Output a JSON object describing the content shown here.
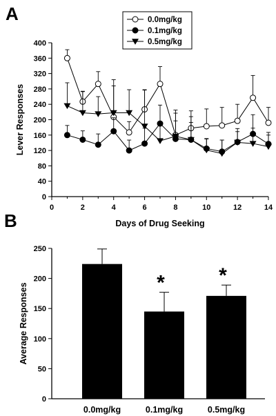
{
  "panel_labels": {
    "a": "A",
    "b": "B"
  },
  "chart_data": [
    {
      "type": "line",
      "panel": "A",
      "xlabel": "Days of Drug Seeking",
      "ylabel": "Lever Responses",
      "xlim": [
        0,
        14
      ],
      "ylim": [
        0,
        400
      ],
      "x_ticks": [
        "0",
        "2",
        "4",
        "6",
        "8",
        "10",
        "12",
        "14"
      ],
      "y_ticks": [
        "0",
        "40",
        "80",
        "120",
        "160",
        "200",
        "240",
        "280",
        "320",
        "360",
        "400"
      ],
      "legend_position": "top-center",
      "series": [
        {
          "name": "0.0mg/kg",
          "marker": "open-circle",
          "color": "#000000",
          "x": [
            1,
            2,
            3,
            4,
            5,
            6,
            7,
            8,
            9,
            10,
            11,
            12,
            13,
            14
          ],
          "y": [
            360,
            247,
            293,
            207,
            167,
            227,
            293,
            160,
            178,
            183,
            185,
            197,
            257,
            192
          ],
          "error": [
            22,
            27,
            32,
            97,
            28,
            50,
            45,
            65,
            45,
            45,
            47,
            43,
            58,
            40
          ]
        },
        {
          "name": "0.1mg/kg",
          "marker": "filled-circle",
          "color": "#000000",
          "x": [
            1,
            2,
            3,
            4,
            5,
            6,
            7,
            8,
            9,
            10,
            11,
            12,
            13,
            14
          ],
          "y": [
            160,
            148,
            135,
            170,
            120,
            138,
            190,
            150,
            148,
            125,
            117,
            142,
            163,
            137
          ],
          "error": [
            25,
            23,
            28,
            35,
            27,
            40,
            48,
            47,
            45,
            25,
            30,
            35,
            50,
            30
          ]
        },
        {
          "name": "0.5mg/kg",
          "marker": "filled-triangle-down",
          "color": "#000000",
          "x": [
            1,
            2,
            3,
            4,
            5,
            6,
            7,
            8,
            9,
            10,
            11,
            12,
            13,
            14
          ],
          "y": [
            236,
            218,
            215,
            218,
            218,
            183,
            145,
            157,
            148,
            121,
            112,
            141,
            138,
            130
          ],
          "error": [
            60,
            55,
            45,
            70,
            60,
            95,
            50,
            60,
            60,
            30,
            35,
            28,
            40,
            30
          ]
        }
      ]
    },
    {
      "type": "bar",
      "panel": "B",
      "xlabel": "",
      "ylabel": "Average Responses",
      "ylim": [
        0,
        250
      ],
      "y_ticks": [
        "0",
        "50",
        "100",
        "150",
        "200",
        "250"
      ],
      "categories": [
        "0.0mg/kg",
        "0.1mg/kg",
        "0.5mg/kg"
      ],
      "values": [
        224,
        145,
        171
      ],
      "errors": [
        25,
        32,
        18
      ],
      "significance": [
        "",
        "*",
        "*"
      ],
      "bar_color": "#000000"
    }
  ]
}
